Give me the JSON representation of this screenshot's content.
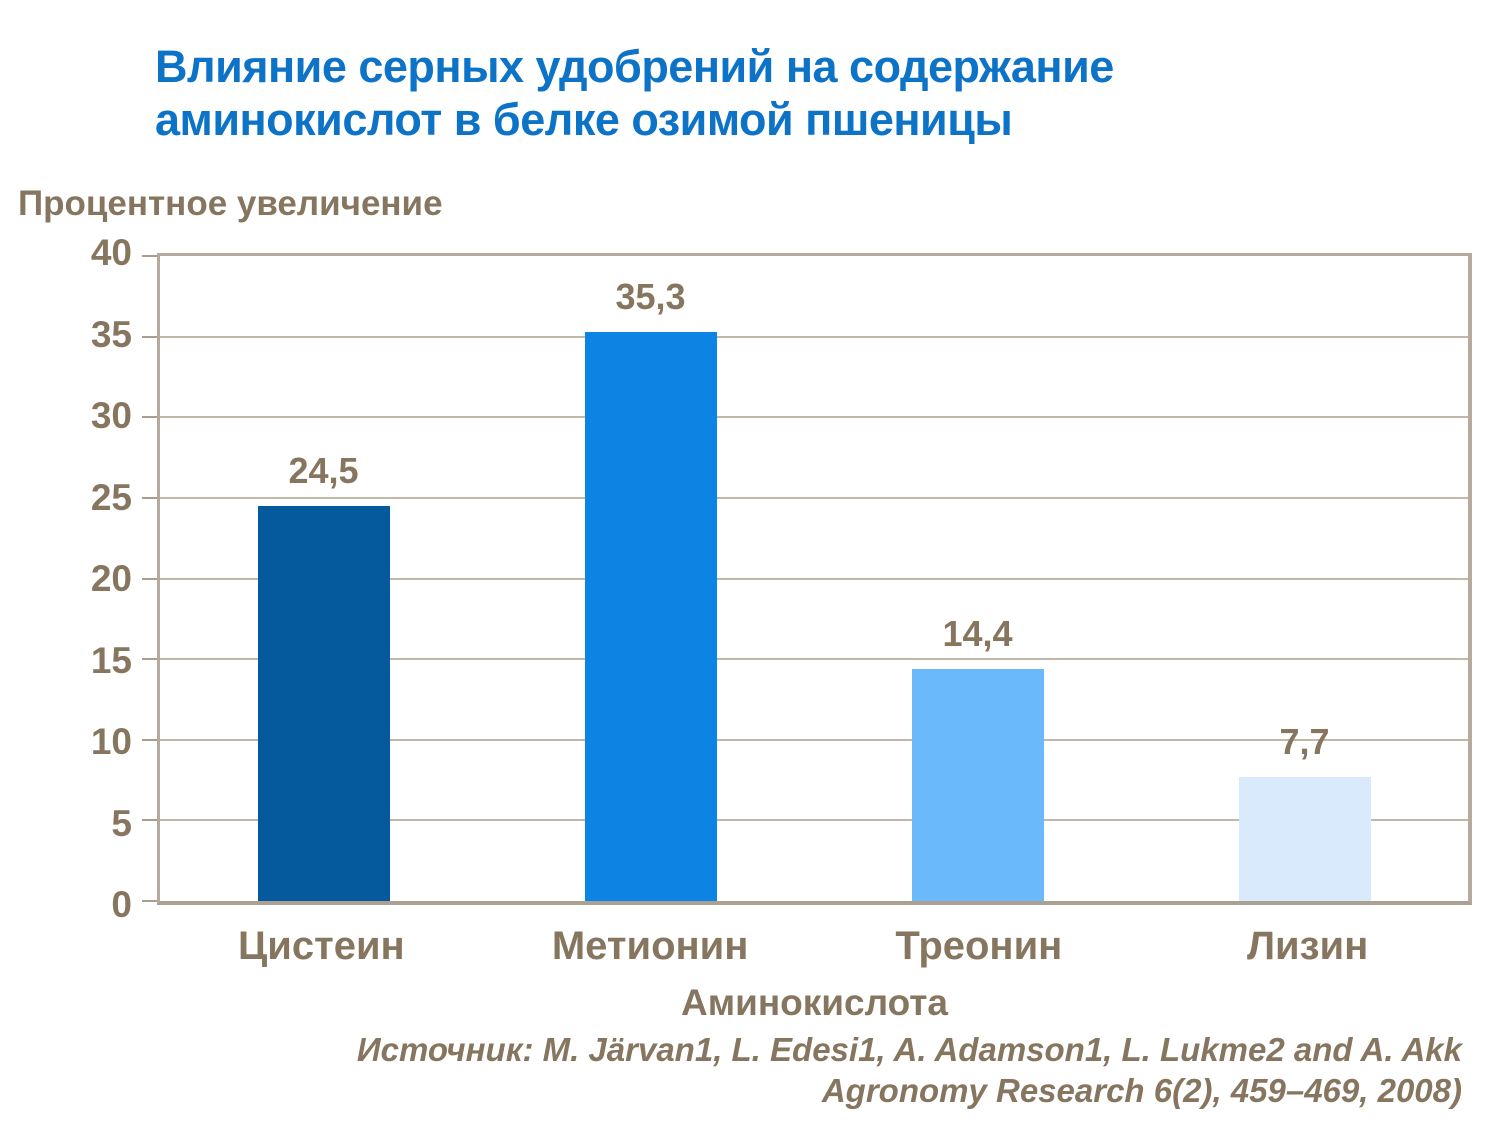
{
  "title": "Влияние серных удобрений на содержание аминокислот в белке озимой пшеницы",
  "source": {
    "line1": "Источник: M. Järvan1, L. Edesi1, A. Adamson1, L. Lukme2 and A. Akk",
    "line2": "Agronomy Research 6(2), 459–469, 2008)"
  },
  "colors": {
    "title_text": "#0d73c7",
    "body_text": "#87765f",
    "axis_line": "#b6aa9d",
    "gridline": "#c3b7a8",
    "background": "#ffffff"
  },
  "chart_data": {
    "type": "bar",
    "title": "Влияние серных удобрений на содержание аминокислот в белке озимой пшеницы",
    "ylabel": "Процентное увеличение",
    "xlabel": "Аминокислота",
    "categories": [
      "Цистеин",
      "Метионин",
      "Треонин",
      "Лизин"
    ],
    "values": [
      24.5,
      35.3,
      14.4,
      7.7
    ],
    "value_labels": [
      "24,5",
      "35,3",
      "14,4",
      "7,7"
    ],
    "bar_colors": [
      "#055a9e",
      "#0b84e4",
      "#6ab9fb",
      "#d8eafc"
    ],
    "ylim": [
      0,
      40
    ],
    "y_ticks": [
      0,
      5,
      10,
      15,
      20,
      25,
      30,
      35,
      40
    ],
    "grid": "horizontal gridlines on",
    "legend": "none"
  }
}
